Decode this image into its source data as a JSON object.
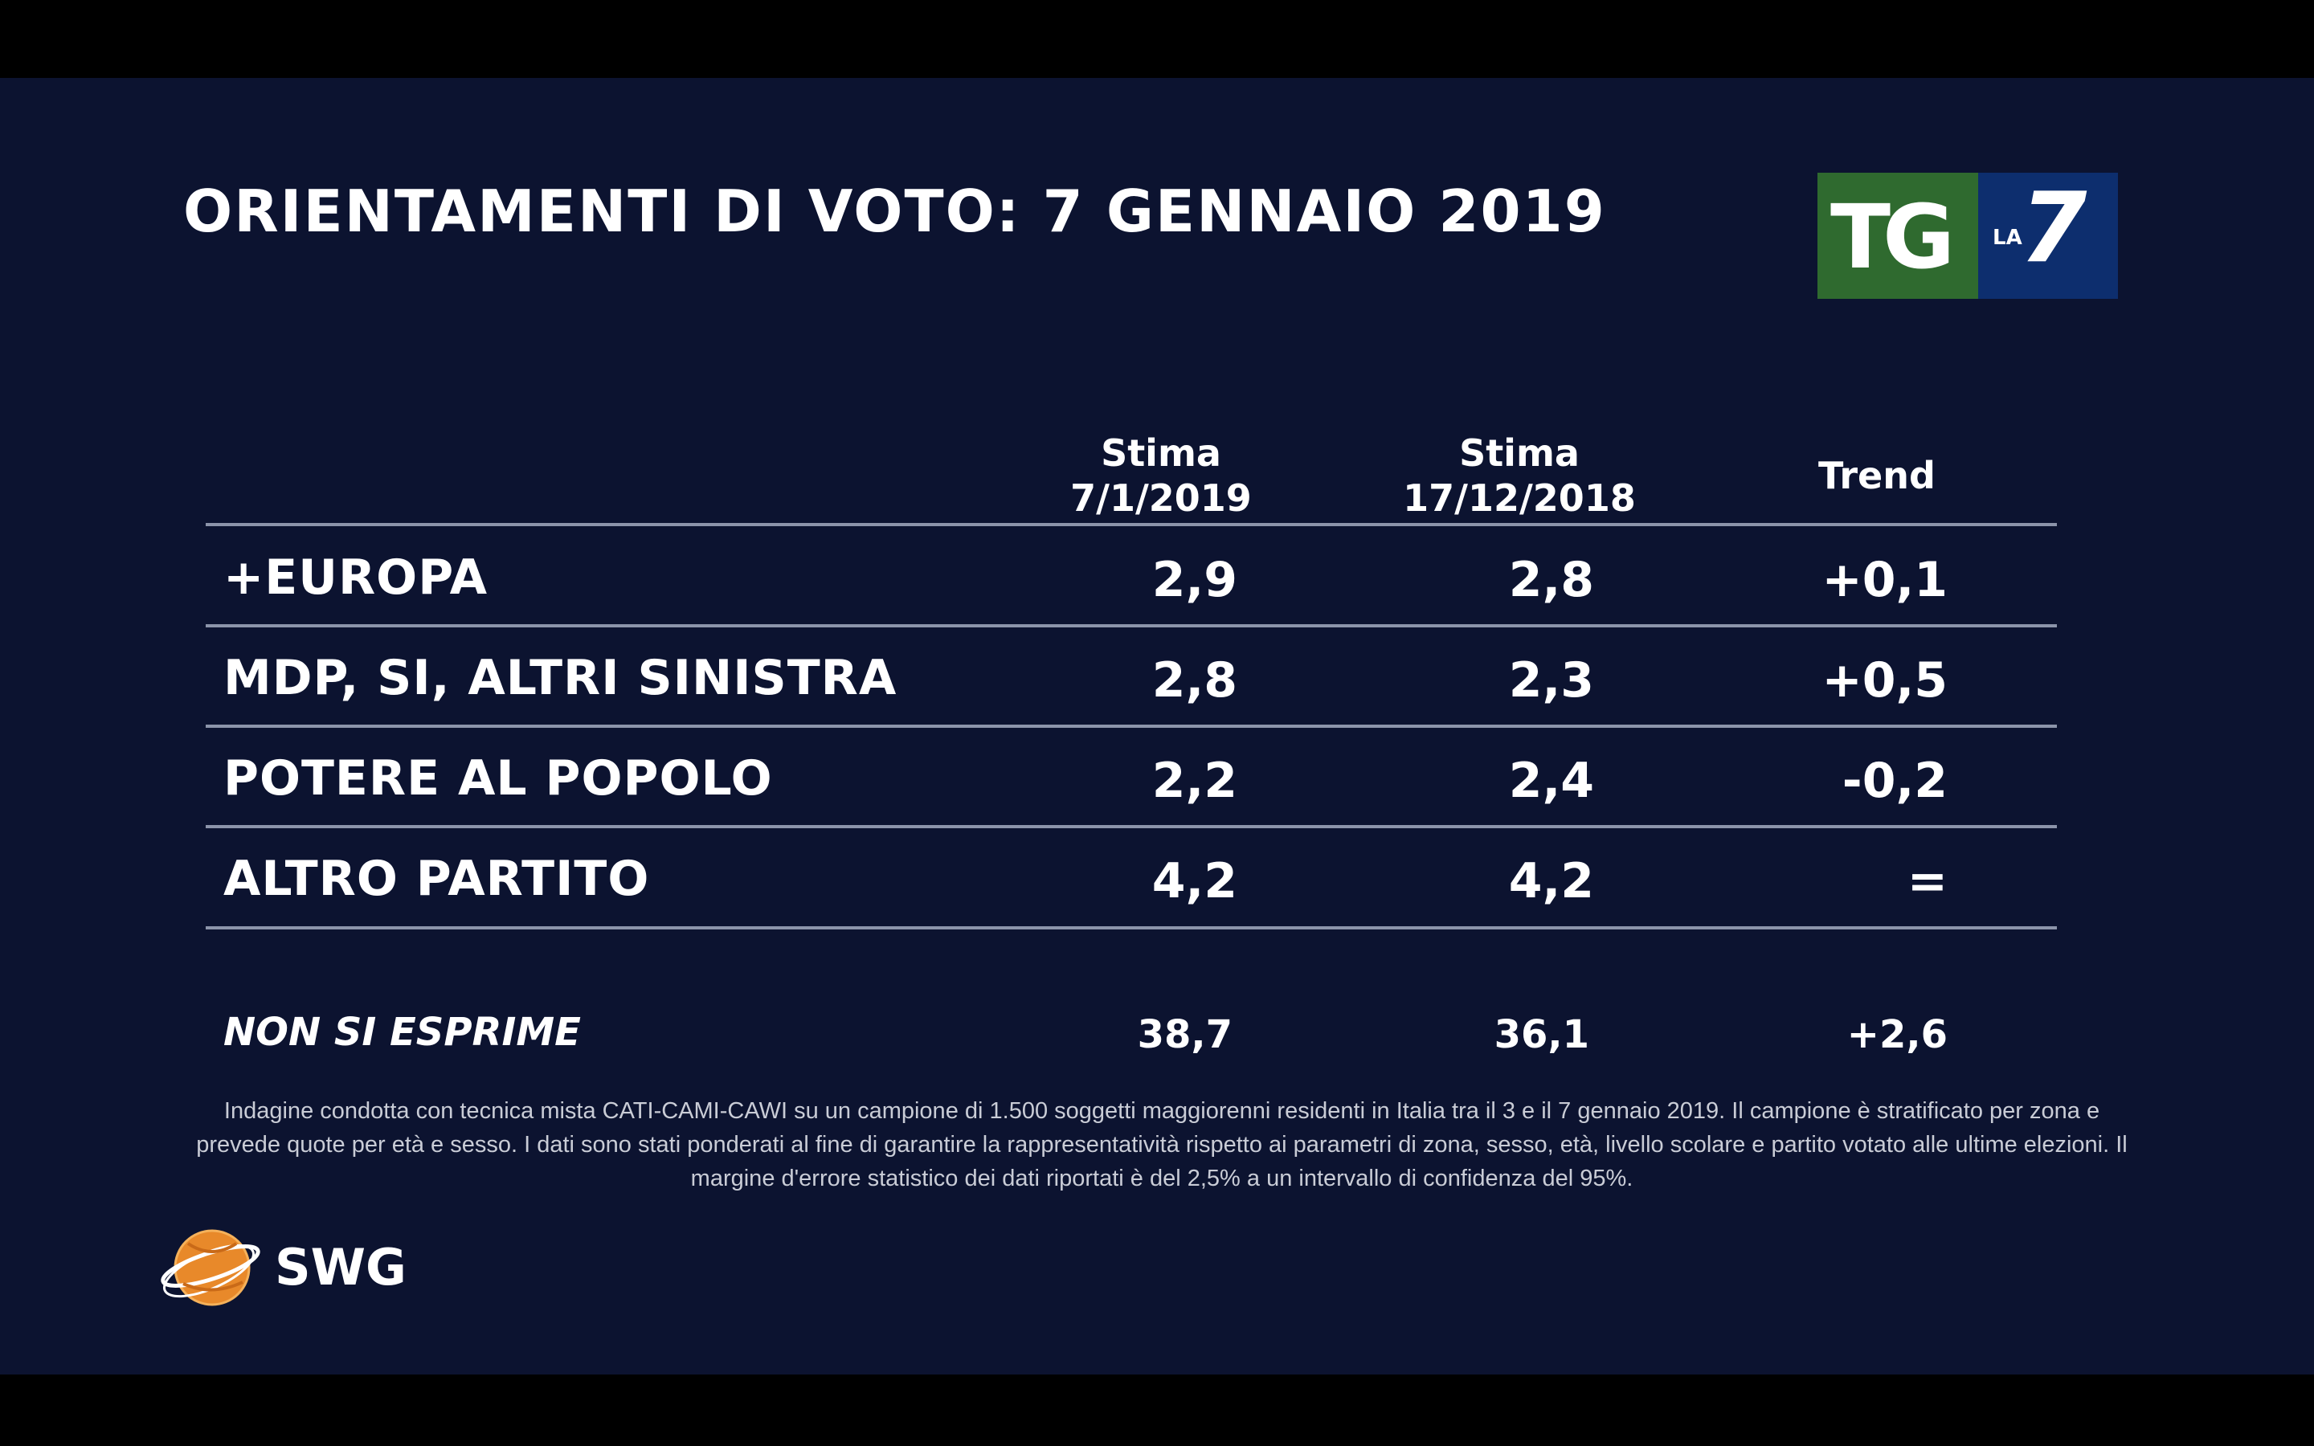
{
  "title": "ORIENTAMENTI DI VOTO: 7 GENNAIO 2019",
  "logo": {
    "tg": "TG",
    "la": "LA",
    "seven": "7"
  },
  "columns": {
    "c1_line1": "Stima",
    "c1_line2": "7/1/2019",
    "c2_line1": "Stima",
    "c2_line2": "17/12/2018",
    "c3": "Trend"
  },
  "rows": [
    {
      "party": "+EUROPA",
      "stima_current": "2,9",
      "stima_previous": "2,8",
      "trend": "+0,1"
    },
    {
      "party": "MDP, SI, ALTRI SINISTRA",
      "stima_current": "2,8",
      "stima_previous": "2,3",
      "trend": "+0,5"
    },
    {
      "party": "POTERE AL POPOLO",
      "stima_current": "2,2",
      "stima_previous": "2,4",
      "trend": "-0,2"
    },
    {
      "party": "ALTRO PARTITO",
      "stima_current": "4,2",
      "stima_previous": "4,2",
      "trend": "="
    }
  ],
  "non_si_esprime": {
    "label": "NON SI ESPRIME",
    "stima_current": "38,7",
    "stima_previous": "36,1",
    "trend": "+2,6"
  },
  "footnote": "Indagine condotta con tecnica mista CATI-CAMI-CAWI su un campione di 1.500 soggetti maggiorenni residenti in Italia tra il 3 e il 7 gennaio 2019. Il campione è stratificato per zona e prevede quote per età e sesso. I dati sono stati ponderati al fine di garantire la rappresentatività rispetto ai parametri di zona, sesso, età, livello scolare e partito votato alle ultime elezioni. Il margine d'errore statistico dei dati riportati è del 2,5% a un intervallo di confidenza del 95%.",
  "brand": "SWG",
  "colors": {
    "background": "#0c1330",
    "tg_green": "#2f6a2f",
    "la7_blue": "#0d2e6e",
    "swg_orange": "#e8892a"
  }
}
